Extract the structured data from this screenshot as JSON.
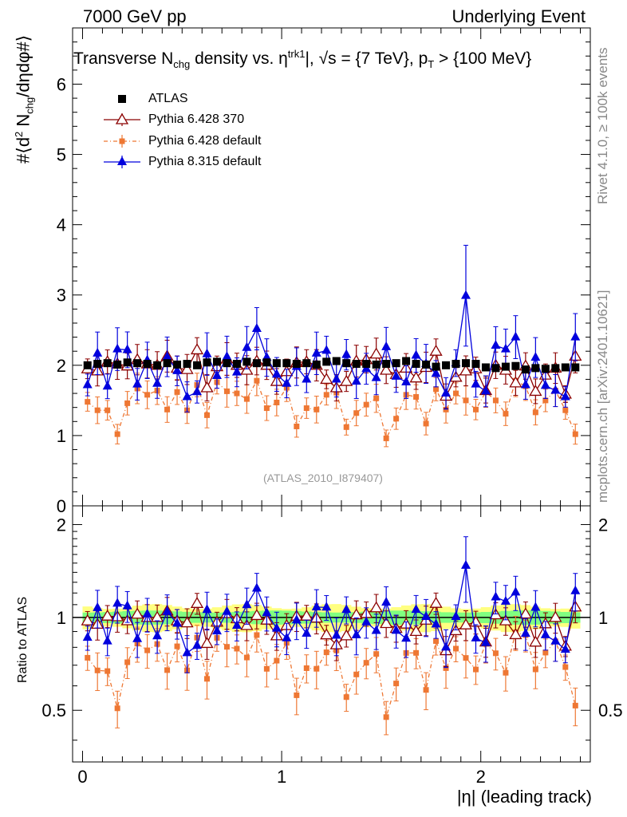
{
  "header": {
    "left": "7000 GeV pp",
    "right": "Underlying Event"
  },
  "side_labels": {
    "rivet": "Rivet 4.1.0, ≥ 100k events",
    "mcplots": "mcplots.cern.ch [arXiv:2401.10621]"
  },
  "watermark": "(ATLAS_2010_I879407)",
  "chart_data": {
    "type": "scatter",
    "title_parts": {
      "a": "Transverse N",
      "a_sub": "chg",
      "b": " density vs. η",
      "b_sup": "trk1",
      "c": "|, √s = {7 TeV}, p",
      "c_sub": "T",
      "d": " > {100 MeV}"
    },
    "ylabel": "#⟨d² N_chg/dηdφ#⟩",
    "ylabel_parts": {
      "a": "#⟨d",
      "a_sup": "2",
      "b": " N",
      "b_sub": "chg",
      "c": "/dηdφ#⟩"
    },
    "ratio_ylabel": "Ratio to ATLAS",
    "xlabel": "|η| (leading track)",
    "xlim": [
      -0.05,
      2.55
    ],
    "ylim": [
      0,
      6.8
    ],
    "ratio_ylim": [
      0.34,
      2.3
    ],
    "x_ticks": [
      0,
      1,
      2
    ],
    "x_tick_labels": [
      "0",
      "1",
      "2"
    ],
    "y_ticks": [
      0,
      1,
      2,
      3,
      4,
      5,
      6
    ],
    "y_tick_labels": [
      "0",
      "1",
      "2",
      "3",
      "4",
      "5",
      "6"
    ],
    "ratio_y_ticks": [
      0.5,
      1,
      2
    ],
    "ratio_y_tick_labels": [
      "0.5",
      "1",
      "2"
    ],
    "x": [
      0.025,
      0.075,
      0.125,
      0.175,
      0.225,
      0.275,
      0.325,
      0.375,
      0.425,
      0.475,
      0.525,
      0.575,
      0.625,
      0.675,
      0.725,
      0.775,
      0.825,
      0.875,
      0.925,
      0.975,
      1.025,
      1.075,
      1.125,
      1.175,
      1.225,
      1.275,
      1.325,
      1.375,
      1.425,
      1.475,
      1.525,
      1.575,
      1.625,
      1.675,
      1.725,
      1.775,
      1.825,
      1.875,
      1.925,
      1.975,
      2.025,
      2.075,
      2.125,
      2.175,
      2.225,
      2.275,
      2.325,
      2.375,
      2.425,
      2.475
    ],
    "series": [
      {
        "name": "ATLAS",
        "color": "#000000",
        "marker": "square",
        "values": [
          2.0,
          2.02,
          2.03,
          2.01,
          2.04,
          2.03,
          2.02,
          2.0,
          2.03,
          2.01,
          2.02,
          2.0,
          2.04,
          2.05,
          2.03,
          2.02,
          2.05,
          2.03,
          2.04,
          2.03,
          2.03,
          2.02,
          2.03,
          2.01,
          2.05,
          2.06,
          2.03,
          2.02,
          2.02,
          2.01,
          2.02,
          2.03,
          2.06,
          2.02,
          2.01,
          1.98,
          2.0,
          2.02,
          2.03,
          2.02,
          1.97,
          1.96,
          1.98,
          1.99,
          1.94,
          1.96,
          1.95,
          1.96,
          1.97,
          1.97
        ]
      },
      {
        "name": "Pythia 6.428 370",
        "color": "#8b0000",
        "marker": "open-triangle",
        "values": [
          1.95,
          1.92,
          2.05,
          2.02,
          1.99,
          2.08,
          2.02,
          2.0,
          2.13,
          1.96,
          1.94,
          2.22,
          1.68,
          1.98,
          2.09,
          2.0,
          1.93,
          2.06,
          2.0,
          1.77,
          1.91,
          2.04,
          2.05,
          2.0,
          1.8,
          1.68,
          1.77,
          2.06,
          2.08,
          2.16,
          1.93,
          1.87,
          1.96,
          1.82,
          1.97,
          2.2,
          1.56,
          1.83,
          1.92,
          1.95,
          1.64,
          2.0,
          1.93,
          1.75,
          1.99,
          1.63,
          1.86,
          1.96,
          1.59,
          2.13
        ]
      },
      {
        "name": "Pythia 6.428 default",
        "color": "#ee7733",
        "marker": "small-square",
        "values": [
          1.48,
          1.36,
          1.36,
          1.02,
          1.46,
          1.67,
          1.58,
          1.64,
          1.37,
          1.62,
          1.36,
          1.72,
          1.29,
          1.76,
          1.63,
          1.6,
          1.52,
          1.78,
          1.39,
          1.47,
          1.68,
          1.13,
          1.39,
          1.37,
          1.58,
          1.61,
          1.12,
          1.32,
          1.44,
          1.53,
          0.96,
          1.24,
          1.58,
          1.55,
          1.17,
          1.66,
          1.37,
          1.6,
          1.5,
          1.37,
          1.62,
          1.5,
          1.31,
          1.78,
          1.7,
          1.33,
          1.5,
          1.64,
          1.36,
          1.02
        ]
      },
      {
        "name": "Pythia 8.315 default",
        "color": "#0000dd",
        "marker": "filled-triangle",
        "values": [
          1.72,
          2.17,
          1.7,
          2.23,
          2.22,
          1.73,
          2.07,
          1.74,
          2.12,
          1.92,
          1.55,
          1.62,
          2.16,
          1.85,
          2.12,
          1.9,
          2.25,
          2.52,
          2.11,
          1.87,
          1.74,
          1.98,
          1.8,
          2.17,
          2.21,
          1.8,
          2.15,
          1.77,
          1.95,
          1.82,
          2.26,
          1.84,
          1.76,
          2.14,
          2.02,
          1.88,
          1.6,
          2.03,
          2.99,
          1.73,
          1.63,
          2.28,
          2.23,
          2.4,
          1.72,
          2.11,
          1.71,
          1.64,
          1.55,
          2.4
        ]
      }
    ]
  }
}
